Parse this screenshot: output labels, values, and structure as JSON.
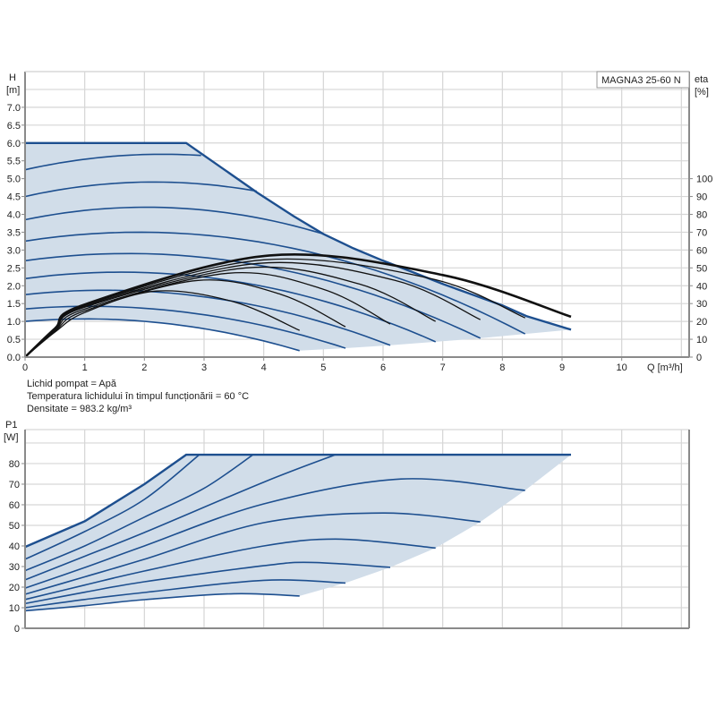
{
  "chart_data": [
    {
      "type": "line",
      "title": "",
      "legend_box": "MAGNA3 25-60 N",
      "xlabel": "Q [m³/h]",
      "ylabel_top": "H",
      "ylabel_unit": "[m]",
      "y2label_top": "eta",
      "y2label_unit": "[%]",
      "xlim": [
        0,
        11.13
      ],
      "ylim": [
        0,
        8
      ],
      "y2lim": [
        0,
        160
      ],
      "x_ticks": [
        "0",
        "1",
        "2",
        "3",
        "4",
        "5",
        "6",
        "7",
        "8",
        "9",
        "10"
      ],
      "y_ticks": [
        "0.0",
        "0.5",
        "1.0",
        "1.5",
        "2.0",
        "2.5",
        "3.0",
        "3.5",
        "4.0",
        "4.5",
        "5.0",
        "5.5",
        "6.0",
        "6.5",
        "7.0"
      ],
      "y2_ticks": [
        "0",
        "10",
        "20",
        "30",
        "40",
        "50",
        "60",
        "70",
        "80",
        "90",
        "100"
      ],
      "grid": true,
      "colors": {
        "curve": "#1d4f8f",
        "fill": "#d1dde9",
        "efficiency": "#111111",
        "grid": "#d6d6d6",
        "axis": "#8a8a8a"
      },
      "max_curve": [
        [
          0,
          6.0
        ],
        [
          2.7,
          6.0
        ],
        [
          3.3,
          5.3
        ],
        [
          3.9,
          4.6
        ],
        [
          4.5,
          3.95
        ],
        [
          5.0,
          3.45
        ],
        [
          5.5,
          3.05
        ],
        [
          6.0,
          2.7
        ],
        [
          6.5,
          2.38
        ],
        [
          7.0,
          2.05
        ],
        [
          7.5,
          1.75
        ],
        [
          8.0,
          1.45
        ],
        [
          8.4,
          1.15
        ],
        [
          9.15,
          0.77
        ]
      ],
      "speed_curves_H": [
        [
          [
            0,
            5.25
          ],
          [
            2.1,
            5.68
          ],
          [
            2.95,
            5.65
          ]
        ],
        [
          [
            0,
            4.5
          ],
          [
            1.9,
            4.9
          ],
          [
            3.88,
            4.65
          ]
        ],
        [
          [
            0,
            3.85
          ],
          [
            2.0,
            4.2
          ],
          [
            5.0,
            3.45
          ]
        ],
        [
          [
            0,
            3.25
          ],
          [
            2.0,
            3.5
          ],
          [
            8.38,
            0.65
          ]
        ],
        [
          [
            0,
            2.7
          ],
          [
            1.9,
            2.9
          ],
          [
            7.63,
            0.53
          ]
        ],
        [
          [
            0,
            2.2
          ],
          [
            1.7,
            2.38
          ],
          [
            6.88,
            0.43
          ]
        ],
        [
          [
            0,
            1.75
          ],
          [
            1.6,
            1.87
          ],
          [
            6.12,
            0.33
          ]
        ],
        [
          [
            0,
            1.35
          ],
          [
            1.3,
            1.42
          ],
          [
            5.37,
            0.25
          ]
        ],
        [
          [
            0,
            1.0
          ],
          [
            1.0,
            1.07
          ],
          [
            4.6,
            0.18
          ]
        ]
      ],
      "efficiency_curves_eta": [
        [
          [
            0,
            0
          ],
          [
            0.5,
            14
          ],
          [
            1,
            25
          ],
          [
            2.2,
            37
          ],
          [
            3.5,
            31
          ],
          [
            4.6,
            15
          ]
        ],
        [
          [
            0,
            0
          ],
          [
            0.5,
            14.5
          ],
          [
            1,
            26
          ],
          [
            2.9,
            43
          ],
          [
            4.3,
            35
          ],
          [
            5.37,
            17
          ]
        ],
        [
          [
            0,
            0
          ],
          [
            0.5,
            15
          ],
          [
            1,
            27
          ],
          [
            3.4,
            47
          ],
          [
            5.0,
            38
          ],
          [
            6.12,
            18.5
          ]
        ],
        [
          [
            0,
            0
          ],
          [
            0.5,
            15.5
          ],
          [
            1,
            28
          ],
          [
            3.7,
            50
          ],
          [
            5.6,
            41
          ],
          [
            6.88,
            20
          ]
        ],
        [
          [
            0,
            0
          ],
          [
            0.5,
            15.5
          ],
          [
            1,
            28.5
          ],
          [
            3.9,
            52.5
          ],
          [
            6.2,
            43
          ],
          [
            7.63,
            21
          ]
        ],
        [
          [
            0,
            0
          ],
          [
            0.5,
            16
          ],
          [
            1,
            29
          ],
          [
            4.0,
            54.5
          ],
          [
            6.8,
            44
          ],
          [
            8.38,
            22
          ]
        ],
        [
          [
            0,
            0
          ],
          [
            0.5,
            16
          ],
          [
            1,
            29.5
          ],
          [
            4.1,
            57
          ],
          [
            7.0,
            46
          ],
          [
            9.15,
            22.6
          ]
        ]
      ]
    },
    {
      "type": "line",
      "title": "",
      "ylabel_top": "P1",
      "ylabel_unit": "[W]",
      "xlim": [
        0,
        11.13
      ],
      "ylim": [
        0,
        96.5
      ],
      "y_ticks": [
        "0",
        "10",
        "20",
        "30",
        "40",
        "50",
        "60",
        "70",
        "80"
      ],
      "grid": true,
      "max_curve": [
        [
          0,
          39.5
        ],
        [
          1,
          52
        ],
        [
          2,
          70
        ],
        [
          2.7,
          84.3
        ],
        [
          9.15,
          84.3
        ]
      ],
      "power_curves_P1": [
        [
          [
            0,
            33.5
          ],
          [
            1,
            47
          ],
          [
            2,
            62.6
          ],
          [
            2.92,
            84.3
          ]
        ],
        [
          [
            0,
            28
          ],
          [
            1,
            40
          ],
          [
            2,
            54
          ],
          [
            3.0,
            68
          ],
          [
            3.82,
            84.3
          ]
        ],
        [
          [
            0,
            23.5
          ],
          [
            1,
            35
          ],
          [
            2,
            46.5
          ],
          [
            4.0,
            71
          ],
          [
            5.2,
            84.3
          ]
        ],
        [
          [
            0,
            19.5
          ],
          [
            1,
            29.5
          ],
          [
            2,
            40
          ],
          [
            4.0,
            60.4
          ],
          [
            6.3,
            72.5
          ],
          [
            8.38,
            67
          ]
        ],
        [
          [
            0,
            16.5
          ],
          [
            1,
            25
          ],
          [
            2,
            33.5
          ],
          [
            4.0,
            51.3
          ],
          [
            6.0,
            56
          ],
          [
            7.63,
            51.7
          ]
        ],
        [
          [
            0,
            14
          ],
          [
            1,
            21
          ],
          [
            2,
            27.8
          ],
          [
            4.0,
            40
          ],
          [
            5.3,
            43.3
          ],
          [
            6.88,
            39
          ]
        ],
        [
          [
            0,
            12
          ],
          [
            1,
            17.5
          ],
          [
            2,
            22.6
          ],
          [
            4.0,
            30.4
          ],
          [
            4.8,
            32
          ],
          [
            6.12,
            29.6
          ]
        ],
        [
          [
            0,
            10
          ],
          [
            1,
            14
          ],
          [
            2,
            17.4
          ],
          [
            4.0,
            23.3
          ],
          [
            5.37,
            22
          ]
        ],
        [
          [
            0,
            8.5
          ],
          [
            1,
            11
          ],
          [
            2,
            13.9
          ],
          [
            3.5,
            16.8
          ],
          [
            4.6,
            15.7
          ]
        ]
      ]
    }
  ],
  "notes": {
    "liquid": "Lichid pompat = Apă",
    "temperature": "Temperatura lichidului în timpul funcționării = 60 °C",
    "density": "Densitate = 983.2 kg/m³"
  }
}
